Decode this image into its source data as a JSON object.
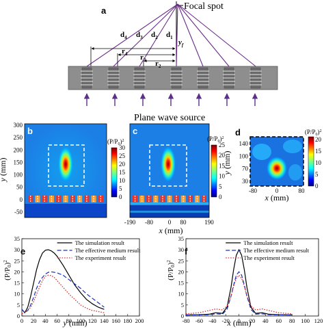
{
  "figure": {
    "panel_a": {
      "label": "a",
      "focal_label": "Focal spot",
      "source_label": "Plane wave source",
      "d_labels": [
        "d",
        "d",
        "d",
        "d"
      ],
      "d_subs": [
        "4",
        "3",
        "2",
        "1"
      ],
      "r_labels": [
        "r",
        "r",
        "r"
      ],
      "r_subs": [
        "4",
        "3",
        "2"
      ],
      "yf_label": "y",
      "yf_sub": "f",
      "colors": {
        "ray": "#6b2a8a",
        "plate": "#8e8e8e",
        "hole": "#5a5a5a",
        "source_arrow": "#5b2f8a"
      }
    },
    "panel_b": {
      "label": "b",
      "cb_title": "(P/P",
      "cb_title_sub": "0",
      "cb_title_end": ")",
      "cb_title_sup": "2",
      "cb_ticks": [
        "30",
        "25",
        "20",
        "15",
        "10",
        "5",
        "0"
      ],
      "y_ticks": [
        "300",
        "250",
        "200",
        "150",
        "100",
        "50",
        "0",
        "-50"
      ],
      "y_label": "y",
      "y_unit": " (mm)"
    },
    "panel_c": {
      "label": "c",
      "cb_title": "(P/P",
      "cb_title_sub": "0",
      "cb_title_end": ")",
      "cb_title_sup": "2",
      "cb_ticks": [
        "25",
        "20",
        "15",
        "10",
        "5",
        "0"
      ],
      "x_ticks": [
        "-190",
        "-80",
        "0",
        "80",
        "190"
      ],
      "x_label": "x",
      "x_unit": " (mm)"
    },
    "panel_d": {
      "label": "d",
      "cb_title": "(P/P",
      "cb_title_sub": "0",
      "cb_title_end": ")",
      "cb_title_sup": "2",
      "cb_ticks": [
        "20",
        "15",
        "10",
        "5",
        "0"
      ],
      "y_ticks": [
        "140",
        "100",
        "70",
        "30"
      ],
      "x_ticks": [
        "-80",
        "0",
        "80"
      ],
      "x_label": "x",
      "x_unit": " (mm)",
      "y_label": "y",
      "y_unit": " (mm)"
    },
    "panel_e": {
      "label": "e",
      "x_label": "y",
      "x_unit": " (mm)",
      "y_label": "(P/P",
      "y_label_sub": "0",
      "y_label_end": ")",
      "y_label_sup": "2",
      "legend": [
        "The simulation result",
        "The effective medium result",
        "The experiment result"
      ]
    },
    "panel_f": {
      "label": "f",
      "x_label": "x",
      "x_unit": " (mm)",
      "y_label": "(P/P",
      "y_label_sub": "0",
      "y_label_end": ")",
      "y_label_sup": "2",
      "legend": [
        "The simulation result",
        "The effective medium result",
        "The experiment result"
      ]
    }
  },
  "chart_data": [
    {
      "type": "line",
      "panel": "e",
      "xlabel": "y (mm)",
      "ylabel": "(P/P0)^2",
      "xlim": [
        0,
        200
      ],
      "ylim": [
        0,
        35
      ],
      "xticks": [
        0,
        20,
        40,
        60,
        80,
        100,
        120,
        140,
        160,
        180,
        200
      ],
      "yticks": [
        0,
        5,
        10,
        15,
        20,
        25,
        30,
        35
      ],
      "legend_position": "top-right",
      "series": [
        {
          "name": "The simulation result",
          "color": "#000000",
          "style": "solid",
          "x": [
            0,
            5,
            10,
            15,
            20,
            25,
            30,
            35,
            40,
            45,
            50,
            55,
            60,
            70,
            80,
            90,
            100,
            110,
            120,
            130,
            140
          ],
          "y": [
            3,
            1.5,
            4,
            9,
            15,
            21,
            25.5,
            28.5,
            29.8,
            30,
            29.5,
            28.5,
            27,
            23,
            18.5,
            14,
            10.5,
            7.5,
            5.5,
            4,
            3
          ]
        },
        {
          "name": "The effective medium result",
          "color": "#1a2fb8",
          "style": "dashed",
          "x": [
            0,
            5,
            10,
            15,
            20,
            25,
            30,
            35,
            40,
            45,
            50,
            55,
            60,
            70,
            80,
            90,
            100,
            110,
            120,
            130,
            140
          ],
          "y": [
            3,
            1.5,
            2.5,
            5,
            8.5,
            12.5,
            15.5,
            17.5,
            19,
            19.8,
            20,
            19.8,
            19.5,
            18.5,
            16.5,
            14.5,
            12.5,
            10,
            8,
            6,
            4
          ]
        },
        {
          "name": "The experiment result",
          "color": "#d42a2a",
          "style": "dotted",
          "x": [
            0,
            5,
            10,
            15,
            20,
            25,
            30,
            35,
            40,
            45,
            50,
            55,
            60,
            70,
            80,
            90,
            100,
            110,
            120,
            130,
            140
          ],
          "y": [
            1,
            1.5,
            2.5,
            4,
            6.5,
            10,
            13,
            16,
            18,
            18.5,
            18.3,
            17.5,
            16,
            13,
            10,
            7.5,
            5,
            3.5,
            2.5,
            2,
            1.5
          ]
        }
      ]
    },
    {
      "type": "line",
      "panel": "f",
      "xlabel": "x (mm)",
      "ylabel": "(P/P0)^2",
      "xlim": [
        -80,
        120
      ],
      "ylim": [
        0,
        35
      ],
      "xticks": [
        -80,
        -60,
        -40,
        -20,
        0,
        20,
        40,
        60,
        80,
        100,
        120
      ],
      "yticks": [
        0,
        5,
        10,
        15,
        20,
        25,
        30,
        35
      ],
      "legend_position": "top-right",
      "series": [
        {
          "name": "The simulation result",
          "color": "#000000",
          "style": "solid",
          "x": [
            -80,
            -60,
            -45,
            -35,
            -25,
            -18,
            -12,
            -8,
            -4,
            0,
            4,
            8,
            12,
            18,
            25,
            35,
            45,
            60,
            80
          ],
          "y": [
            0.5,
            0.6,
            0.8,
            1.5,
            1.2,
            4,
            13,
            21,
            27.5,
            30,
            27.5,
            21,
            13,
            4,
            1.2,
            1.5,
            0.8,
            0.6,
            0.5
          ]
        },
        {
          "name": "The effective medium result",
          "color": "#1a2fb8",
          "style": "dashed",
          "x": [
            -80,
            -60,
            -45,
            -35,
            -25,
            -18,
            -12,
            -8,
            -4,
            0,
            4,
            8,
            12,
            18,
            25,
            35,
            45,
            60,
            80
          ],
          "y": [
            0.4,
            0.5,
            0.6,
            1.0,
            0.8,
            3,
            9,
            14,
            18.5,
            20,
            18.5,
            14,
            9,
            3,
            0.8,
            1.0,
            0.6,
            0.5,
            0.4
          ]
        },
        {
          "name": "The experiment result",
          "color": "#d42a2a",
          "style": "dotted",
          "x": [
            -80,
            -60,
            -45,
            -35,
            -25,
            -18,
            -12,
            -8,
            -4,
            0,
            4,
            8,
            12,
            18,
            25,
            35,
            45,
            60,
            80
          ],
          "y": [
            1,
            1.5,
            2.5,
            3.2,
            2.8,
            4.5,
            9,
            13.5,
            17,
            18.5,
            17,
            13.5,
            9,
            4.5,
            2.8,
            3.2,
            2.5,
            1.5,
            1
          ]
        }
      ]
    }
  ]
}
